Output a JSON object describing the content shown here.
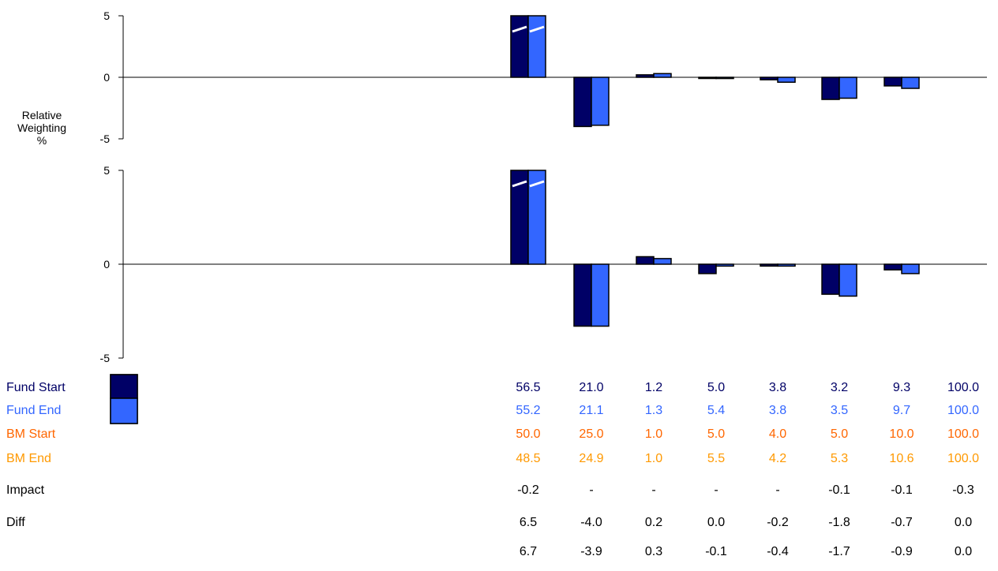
{
  "chart_data": {
    "type": "bar",
    "ylabel": "Relative\nWeighting\n%",
    "categories": [
      "",
      "",
      "",
      "",
      "",
      "",
      "",
      ""
    ],
    "colors": {
      "fund_start": "#000066",
      "fund_end": "#3366ff",
      "bm_start": "#ff6600",
      "bm_end": "#ff9900",
      "axis": "#000000",
      "break": "#ffffff"
    },
    "panels": [
      {
        "ylim": [
          -5,
          5
        ],
        "yticks": [
          "5",
          "0",
          "-5"
        ],
        "series": [
          {
            "values": [
              6.5,
              -4.0,
              0.2,
              0.0,
              -0.2,
              -1.8,
              -0.7
            ]
          },
          {
            "values": [
              6.7,
              -3.9,
              0.3,
              -0.1,
              -0.4,
              -1.7,
              -0.9
            ]
          }
        ],
        "clipped_index": 0
      },
      {
        "ylim": [
          -5,
          5
        ],
        "yticks": [
          "5",
          "0",
          "-5"
        ],
        "series": [
          {
            "values": [
              6.5,
              -3.3,
              0.4,
              -0.5,
              -0.1,
              -1.6,
              -0.3
            ]
          },
          {
            "values": [
              6.7,
              -3.3,
              0.3,
              -0.1,
              -0.1,
              -1.7,
              -0.5
            ]
          }
        ],
        "clipped_index": 0
      }
    ],
    "legend": [
      {
        "name": "Fund Start",
        "swatch": "fund_start"
      },
      {
        "name": "Fund End",
        "swatch": "fund_end"
      }
    ],
    "table": [
      {
        "label": "Fund Start",
        "color": "#000066",
        "values": [
          "56.5",
          "21.0",
          "1.2",
          "5.0",
          "3.8",
          "3.2",
          "9.3",
          "100.0"
        ]
      },
      {
        "label": "Fund End",
        "color": "#3366ff",
        "values": [
          "55.2",
          "21.1",
          "1.3",
          "5.4",
          "3.8",
          "3.5",
          "9.7",
          "100.0"
        ]
      },
      {
        "label": "BM Start",
        "color": "#ff6600",
        "values": [
          "50.0",
          "25.0",
          "1.0",
          "5.0",
          "4.0",
          "5.0",
          "10.0",
          "100.0"
        ]
      },
      {
        "label": "BM End",
        "color": "#ff9900",
        "values": [
          "48.5",
          "24.9",
          "1.0",
          "5.5",
          "4.2",
          "5.3",
          "10.6",
          "100.0"
        ]
      },
      {
        "label": "Impact",
        "color": "#000000",
        "values": [
          "-0.2",
          "-",
          "-",
          "-",
          "-",
          "-0.1",
          "-0.1",
          "-0.3"
        ]
      },
      {
        "label": "Diff",
        "color": "#000000",
        "values": [
          "6.5",
          "-4.0",
          "0.2",
          "0.0",
          "-0.2",
          "-1.8",
          "-0.7",
          "0.0"
        ]
      },
      {
        "label": "",
        "color": "#000000",
        "values": [
          "6.7",
          "-3.9",
          "0.3",
          "-0.1",
          "-0.4",
          "-1.7",
          "-0.9",
          "0.0"
        ]
      }
    ]
  }
}
